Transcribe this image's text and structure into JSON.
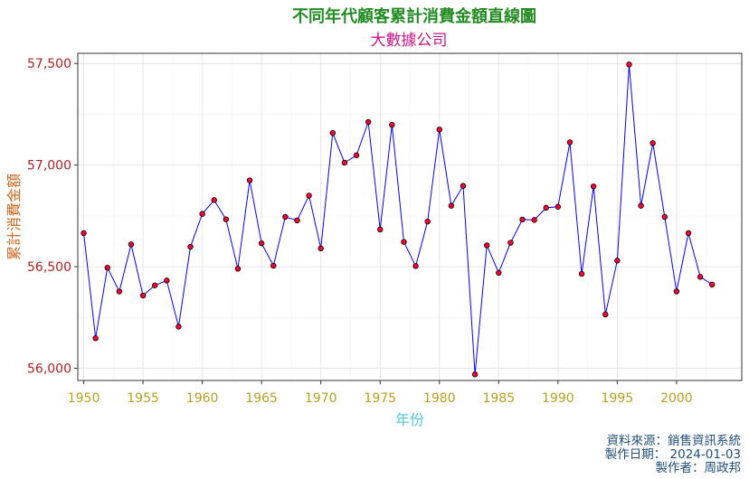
{
  "colors": {
    "title": "#228B22",
    "subtitle": "#C71585",
    "y_axis_title": "#D2691E",
    "x_axis_title": "#4DC9E0",
    "y_tick": "#B22222",
    "x_tick": "#B8A020",
    "line": "#0000FF",
    "point_fill": "#FF0033",
    "point_stroke": "#000000",
    "caption": "#1F4E79",
    "grid": "#E6E6E6",
    "panel_border": "#333333"
  },
  "chart_data": {
    "type": "line",
    "title": "不同年代顧客累計消費金額直線圖",
    "subtitle": "大數據公司",
    "xlabel": "年份",
    "ylabel": "累計消費金額",
    "xlim": [
      1949.5,
      2005.5
    ],
    "ylim": [
      55940,
      57550
    ],
    "x_ticks": [
      1950,
      1955,
      1960,
      1965,
      1970,
      1975,
      1980,
      1985,
      1990,
      1995,
      2000
    ],
    "y_ticks": [
      56000,
      56500,
      57000,
      57500
    ],
    "x_tick_labels": [
      "1950",
      "1955",
      "1960",
      "1965",
      "1970",
      "1975",
      "1980",
      "1985",
      "1990",
      "1995",
      "2000"
    ],
    "y_tick_labels": [
      "56,000",
      "56,500",
      "57,000",
      "57,500"
    ],
    "grid": true,
    "legend": "none",
    "x": [
      1950,
      1951,
      1952,
      1953,
      1954,
      1955,
      1956,
      1957,
      1958,
      1959,
      1960,
      1961,
      1962,
      1963,
      1964,
      1965,
      1966,
      1967,
      1968,
      1969,
      1970,
      1971,
      1972,
      1973,
      1974,
      1975,
      1976,
      1977,
      1978,
      1979,
      1980,
      1981,
      1982,
      1983,
      1984,
      1985,
      1986,
      1987,
      1988,
      1989,
      1990,
      1991,
      1992,
      1993,
      1994,
      1995,
      1996,
      1997,
      1998,
      1999,
      2000,
      2001,
      2002,
      2003
    ],
    "y": [
      56665,
      56148,
      56495,
      56378,
      56610,
      56358,
      56408,
      56432,
      56205,
      56598,
      56760,
      56828,
      56733,
      56490,
      56925,
      56615,
      56505,
      56745,
      56728,
      56850,
      56590,
      57158,
      57012,
      57048,
      57212,
      56683,
      57198,
      56622,
      56503,
      56722,
      57175,
      56800,
      56898,
      55970,
      56605,
      56470,
      56618,
      56732,
      56730,
      56790,
      56795,
      57112,
      56465,
      56895,
      56265,
      56530,
      57495,
      56800,
      57108,
      56745,
      56378,
      56665,
      56450,
      56412
    ]
  },
  "caption": {
    "line1": "資料來源：銷售資訊系統",
    "line2": "製作日期： 2024-01-03",
    "line3": "製作者：周政邦"
  }
}
